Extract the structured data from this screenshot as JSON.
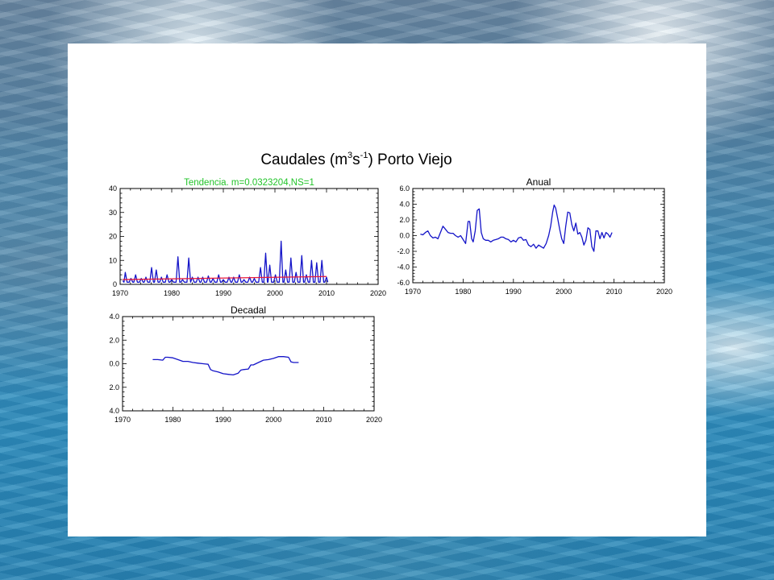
{
  "slide": {
    "title_main": "Caudales (m",
    "title_sup1": "3",
    "title_mid": "s",
    "title_sup2": "-1",
    "title_end": ") Porto Viejo"
  },
  "colors": {
    "series_line": "#1414c8",
    "trend_line": "#e8193c",
    "trend_label": "#22c42a",
    "axis": "#000000",
    "panel": "#ffffff"
  },
  "chart_data": [
    {
      "id": "monthly",
      "type": "line",
      "title": "Tendencia. m=0.0323204,NS=1",
      "xlabel": "",
      "ylabel": "",
      "xlim": [
        1970,
        2020
      ],
      "ylim": [
        0,
        40
      ],
      "x_ticks": [
        "1970",
        "1980",
        "1990",
        "2000",
        "2010",
        "2020"
      ],
      "y_ticks": [
        "0",
        "10",
        "20",
        "30",
        "40"
      ],
      "grid": false,
      "peaks": [
        [
          1971.0,
          5
        ],
        [
          1972.1,
          2.5
        ],
        [
          1973.0,
          4
        ],
        [
          1974.1,
          2.5
        ],
        [
          1975.0,
          3
        ],
        [
          1976.1,
          7
        ],
        [
          1977.0,
          6
        ],
        [
          1978.0,
          3
        ],
        [
          1979.1,
          4
        ],
        [
          1980.0,
          2
        ],
        [
          1981.2,
          11.5
        ],
        [
          1982.1,
          2
        ],
        [
          1983.3,
          11
        ],
        [
          1984.0,
          3
        ],
        [
          1985.1,
          3
        ],
        [
          1986.0,
          3
        ],
        [
          1987.1,
          3.5
        ],
        [
          1988.0,
          2.5
        ],
        [
          1989.1,
          4
        ],
        [
          1990.0,
          2
        ],
        [
          1991.1,
          3
        ],
        [
          1992.0,
          3
        ],
        [
          1993.1,
          4
        ],
        [
          1994.0,
          2
        ],
        [
          1995.1,
          3
        ],
        [
          1996.0,
          2.5
        ],
        [
          1997.2,
          7
        ],
        [
          1998.2,
          13
        ],
        [
          1999.0,
          8
        ],
        [
          2000.1,
          4
        ],
        [
          2001.2,
          18
        ],
        [
          2002.1,
          6
        ],
        [
          2003.1,
          11
        ],
        [
          2004.1,
          5
        ],
        [
          2005.2,
          12
        ],
        [
          2006.1,
          4
        ],
        [
          2007.1,
          10
        ],
        [
          2008.1,
          9
        ],
        [
          2009.1,
          10
        ],
        [
          2010.0,
          3
        ]
      ],
      "baseline": 1.5,
      "trend": {
        "slope_per_year": 0.0323204,
        "x0": 1970.5,
        "y0": 2.0,
        "x1": 2010.0
      }
    },
    {
      "id": "anual",
      "type": "line",
      "title": "Anual",
      "xlabel": "",
      "ylabel": "",
      "xlim": [
        1970,
        2020
      ],
      "ylim": [
        -6.0,
        6.0
      ],
      "x_ticks": [
        "1970",
        "1980",
        "1990",
        "2000",
        "2010",
        "2020"
      ],
      "y_ticks": [
        "6.0",
        "4.0",
        "2.0",
        "0.0",
        "-2.0",
        "-4.0",
        "-6.0"
      ],
      "grid": false,
      "x": [
        1971.5,
        1972.0,
        1972.5,
        1973.0,
        1973.5,
        1974.0,
        1974.5,
        1975.0,
        1975.5,
        1976.0,
        1976.5,
        1977.0,
        1977.5,
        1978.0,
        1978.5,
        1979.0,
        1979.5,
        1980.0,
        1980.5,
        1981.0,
        1981.3,
        1981.7,
        1982.0,
        1982.4,
        1982.8,
        1983.2,
        1983.6,
        1984.0,
        1984.5,
        1985.0,
        1985.5,
        1986.0,
        1986.5,
        1987.0,
        1987.5,
        1988.0,
        1988.5,
        1989.0,
        1989.5,
        1990.0,
        1990.5,
        1991.0,
        1991.5,
        1992.0,
        1992.5,
        1993.0,
        1993.5,
        1994.0,
        1994.5,
        1995.0,
        1995.5,
        1996.0,
        1996.5,
        1997.0,
        1997.4,
        1997.8,
        1998.1,
        1998.4,
        1998.8,
        1999.2,
        1999.6,
        2000.0,
        2000.4,
        2000.8,
        2001.2,
        2001.6,
        2002.0,
        2002.4,
        2002.8,
        2003.2,
        2003.6,
        2004.0,
        2004.4,
        2004.8,
        2005.2,
        2005.6,
        2006.0,
        2006.4,
        2006.8,
        2007.2,
        2007.6,
        2008.0,
        2008.4,
        2008.8,
        2009.2,
        2009.6
      ],
      "y": [
        0.2,
        0.1,
        0.4,
        0.6,
        0.0,
        -0.3,
        -0.2,
        -0.4,
        0.4,
        1.2,
        0.8,
        0.4,
        0.3,
        0.3,
        0.0,
        -0.2,
        0.0,
        -0.5,
        -1.0,
        1.8,
        1.8,
        -0.4,
        -0.8,
        0.6,
        3.2,
        3.4,
        0.4,
        -0.4,
        -0.6,
        -0.6,
        -0.8,
        -0.6,
        -0.5,
        -0.4,
        -0.2,
        -0.2,
        -0.4,
        -0.5,
        -0.8,
        -0.6,
        -0.8,
        -0.3,
        -0.2,
        -0.6,
        -0.5,
        -1.2,
        -1.4,
        -1.1,
        -1.6,
        -1.2,
        -1.4,
        -1.6,
        -1.0,
        0.0,
        1.2,
        3.0,
        3.9,
        3.5,
        2.2,
        0.8,
        -0.4,
        -1.0,
        1.2,
        3.0,
        2.9,
        1.4,
        0.6,
        1.6,
        0.2,
        0.4,
        -0.2,
        -1.2,
        -0.6,
        1.0,
        0.8,
        -1.4,
        -2.0,
        0.6,
        0.6,
        -0.4,
        0.4,
        -0.3,
        0.4,
        0.2,
        -0.2,
        0.4
      ]
    },
    {
      "id": "decadal",
      "type": "line",
      "title": "Decadal",
      "xlabel": "",
      "ylabel": "",
      "xlim": [
        1970,
        2020
      ],
      "ylim": [
        -4.0,
        4.0
      ],
      "x_ticks": [
        "1970",
        "1980",
        "1990",
        "2000",
        "2010",
        "2020"
      ],
      "y_ticks": [
        "4.0",
        "2.0",
        "0.0",
        "2.0",
        "4.0"
      ],
      "grid": false,
      "x": [
        1976.0,
        1977.0,
        1978.0,
        1978.5,
        1979.0,
        1980.0,
        1981.0,
        1982.0,
        1983.0,
        1984.0,
        1985.0,
        1986.0,
        1987.0,
        1987.5,
        1988.0,
        1989.0,
        1990.0,
        1991.0,
        1992.0,
        1993.0,
        1993.5,
        1994.0,
        1995.0,
        1995.5,
        1996.0,
        1997.0,
        1998.0,
        1999.0,
        2000.0,
        2001.0,
        2002.0,
        2003.0,
        2003.5,
        2004.0,
        2005.0
      ],
      "y": [
        0.35,
        0.35,
        0.3,
        0.55,
        0.55,
        0.5,
        0.35,
        0.2,
        0.2,
        0.1,
        0.05,
        0.0,
        -0.05,
        -0.5,
        -0.6,
        -0.7,
        -0.85,
        -0.9,
        -0.95,
        -0.8,
        -0.55,
        -0.5,
        -0.45,
        -0.1,
        -0.1,
        0.1,
        0.3,
        0.35,
        0.45,
        0.6,
        0.6,
        0.55,
        0.15,
        0.1,
        0.1
      ]
    }
  ]
}
